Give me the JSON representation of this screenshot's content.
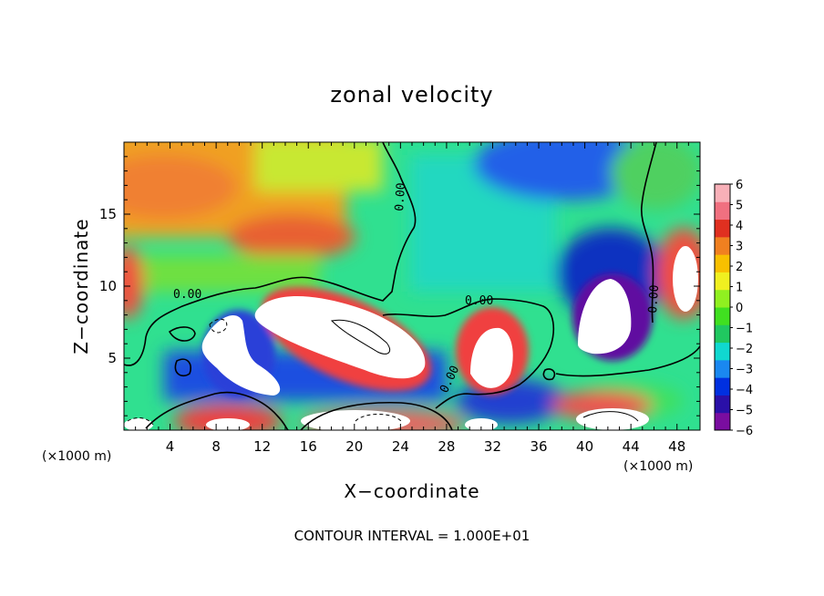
{
  "chart_data": {
    "type": "heatmap",
    "title": "zonal velocity",
    "xlabel": "X−coordinate",
    "ylabel": "Z−coordinate",
    "x_unit": "(×1000 m)",
    "y_unit": "(×1000 m)",
    "xlim": [
      0,
      50
    ],
    "ylim": [
      0,
      20
    ],
    "x_ticks": [
      4,
      8,
      12,
      16,
      20,
      24,
      28,
      32,
      36,
      40,
      44,
      48
    ],
    "y_ticks": [
      5,
      10,
      15
    ],
    "colorbar": {
      "min": -6,
      "max": 6,
      "ticks": [
        6,
        5,
        4,
        3,
        2,
        1,
        0,
        -1,
        -2,
        -3,
        -4,
        -5,
        -6
      ],
      "tick_labels": [
        "6",
        "5",
        "4",
        "3",
        "2",
        "1",
        "0",
        "−1",
        "−2",
        "−3",
        "−4",
        "−5",
        "−6"
      ],
      "colors": [
        "#7a0da0",
        "#2a10a8",
        "#0030e0",
        "#1a88f0",
        "#10d8d0",
        "#20c860",
        "#40e020",
        "#90f020",
        "#f0f020",
        "#f8c000",
        "#f08020",
        "#e03020",
        "#f07080",
        "#f8b0b8"
      ]
    },
    "contour_label": "0.00",
    "contour_interval": "CONTOUR INTERVAL = 1.000E+01",
    "features": [
      {
        "name": "westerly jet core",
        "x": 20,
        "z": 6.5,
        "value": 6
      },
      {
        "name": "westerly core",
        "x": 9,
        "z": 4.5,
        "value": 6
      },
      {
        "name": "westerly core",
        "x": 32,
        "z": 5,
        "value": 6
      },
      {
        "name": "westerly core",
        "x": 42,
        "z": 8,
        "value": 6
      },
      {
        "name": "easterly region",
        "x": 40,
        "z": 11,
        "value": -5
      },
      {
        "name": "easterly band",
        "x": 20,
        "z": 2.5,
        "value": -5
      },
      {
        "name": "upper westerlies",
        "x": 5,
        "z": 17,
        "value": 3
      },
      {
        "name": "upper easterlies",
        "x": 40,
        "z": 18,
        "value": -4
      }
    ]
  }
}
